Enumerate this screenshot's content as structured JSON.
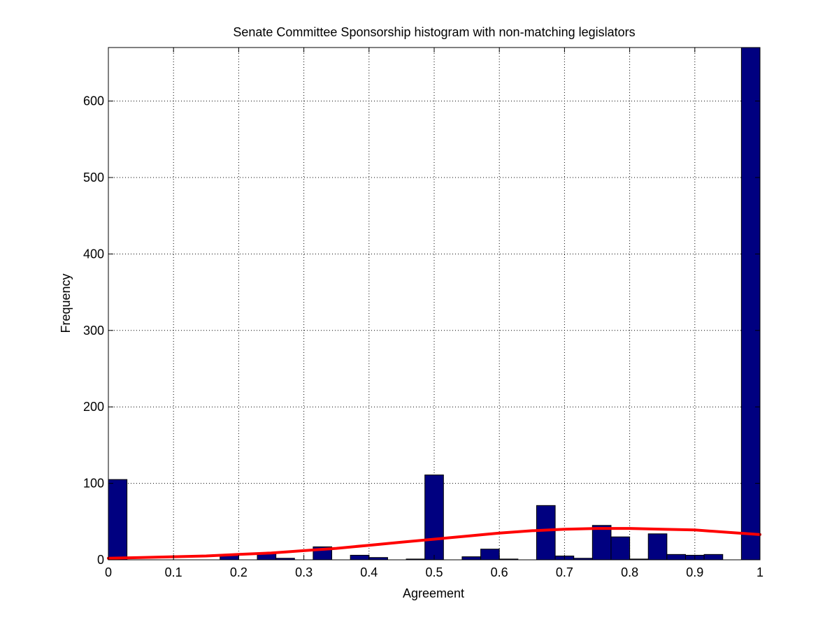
{
  "chart_data": {
    "type": "bar",
    "title": "Senate Committee Sponsorship histogram with non-matching legislators",
    "xlabel": "Agreement",
    "ylabel": "Frequency",
    "xlim": [
      0,
      1
    ],
    "ylim": [
      0,
      670
    ],
    "xticks": [
      "0",
      "0.1",
      "0.2",
      "0.3",
      "0.4",
      "0.5",
      "0.6",
      "0.7",
      "0.8",
      "0.9",
      "1"
    ],
    "yticks": [
      "0",
      "100",
      "200",
      "300",
      "400",
      "500",
      "600"
    ],
    "grid": true,
    "bin_count": 35,
    "bar_color": "#000080",
    "fit_color": "#ff0000",
    "values": [
      105,
      0,
      0,
      0,
      0,
      0,
      6,
      0,
      8,
      2,
      0,
      17,
      0,
      6,
      3,
      0,
      1,
      111,
      0,
      4,
      14,
      1,
      0,
      71,
      5,
      2,
      45,
      30,
      1,
      34,
      7,
      6,
      7,
      0,
      670
    ],
    "fit_curve": {
      "x": [
        0,
        0.05,
        0.1,
        0.15,
        0.2,
        0.25,
        0.3,
        0.35,
        0.4,
        0.45,
        0.5,
        0.55,
        0.6,
        0.65,
        0.7,
        0.75,
        0.8,
        0.85,
        0.9,
        0.95,
        1
      ],
      "y": [
        2,
        3,
        4,
        5,
        7,
        9,
        12,
        15,
        19,
        23,
        27,
        31,
        35,
        38,
        40,
        41,
        41,
        40,
        39,
        36,
        33
      ]
    }
  }
}
